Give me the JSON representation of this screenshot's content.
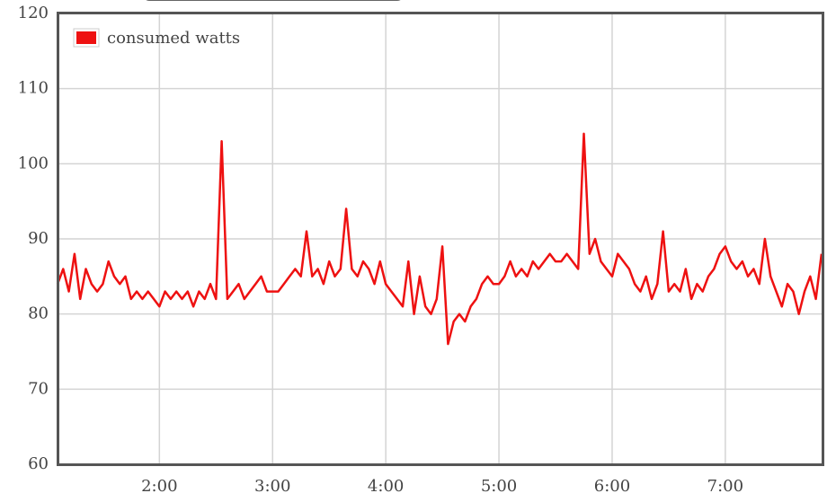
{
  "chart_data": {
    "type": "line",
    "x": [
      66,
      69,
      72,
      75,
      78,
      81,
      84,
      87,
      90,
      93,
      96,
      99,
      102,
      105,
      108,
      111,
      114,
      117,
      120,
      123,
      126,
      129,
      132,
      135,
      138,
      141,
      144,
      147,
      150,
      153,
      156,
      159,
      162,
      165,
      168,
      171,
      174,
      177,
      180,
      183,
      186,
      189,
      192,
      195,
      198,
      201,
      204,
      207,
      210,
      213,
      216,
      219,
      222,
      225,
      228,
      231,
      234,
      237,
      240,
      243,
      246,
      249,
      252,
      255,
      258,
      261,
      264,
      267,
      270,
      273,
      276,
      279,
      282,
      285,
      288,
      291,
      294,
      297,
      300,
      303,
      306,
      309,
      312,
      315,
      318,
      321,
      324,
      327,
      330,
      333,
      336,
      339,
      342,
      345,
      348,
      351,
      354,
      357,
      360,
      363,
      366,
      369,
      372,
      375,
      378,
      381,
      384,
      387,
      390,
      393,
      396,
      399,
      402,
      405,
      408,
      411,
      414,
      417,
      420,
      423,
      426,
      429,
      432,
      435,
      438,
      441,
      444,
      447,
      450,
      453,
      456,
      459,
      462,
      465,
      468,
      471
    ],
    "series": [
      {
        "name": "consumed watts",
        "color": "#ee1111",
        "values": [
          84,
          86,
          83,
          88,
          82,
          86,
          84,
          83,
          84,
          87,
          85,
          84,
          85,
          82,
          83,
          82,
          83,
          82,
          81,
          83,
          82,
          83,
          82,
          83,
          81,
          83,
          82,
          84,
          82,
          103,
          82,
          83,
          84,
          82,
          83,
          84,
          85,
          83,
          83,
          83,
          84,
          85,
          86,
          85,
          91,
          85,
          86,
          84,
          87,
          85,
          86,
          94,
          86,
          85,
          87,
          86,
          84,
          87,
          84,
          83,
          82,
          81,
          87,
          80,
          85,
          81,
          80,
          82,
          89,
          76,
          79,
          80,
          79,
          81,
          82,
          84,
          85,
          84,
          84,
          85,
          87,
          85,
          86,
          85,
          87,
          86,
          87,
          88,
          87,
          87,
          88,
          87,
          86,
          104,
          88,
          90,
          87,
          86,
          85,
          88,
          87,
          86,
          84,
          83,
          85,
          82,
          84,
          91,
          83,
          84,
          83,
          86,
          82,
          84,
          83,
          85,
          86,
          88,
          89,
          87,
          86,
          87,
          85,
          86,
          84,
          90,
          85,
          83,
          81,
          84,
          83,
          80,
          83,
          85,
          82,
          88
        ]
      }
    ],
    "xlim": [
      66,
      472
    ],
    "xticks": [
      {
        "value": 120,
        "label": "2:00"
      },
      {
        "value": 180,
        "label": "3:00"
      },
      {
        "value": 240,
        "label": "4:00"
      },
      {
        "value": 300,
        "label": "5:00"
      },
      {
        "value": 360,
        "label": "6:00"
      },
      {
        "value": 420,
        "label": "7:00"
      }
    ],
    "ylim": [
      60,
      120
    ],
    "yticks": [
      60,
      70,
      80,
      90,
      100,
      110,
      120
    ],
    "grid": true,
    "legend": "top-left"
  }
}
